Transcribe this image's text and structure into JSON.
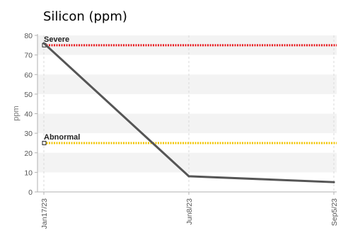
{
  "chart_data": {
    "type": "line",
    "title": "Silicon (ppm)",
    "xlabel": "",
    "ylabel": "ppm",
    "x": [
      "Jan17/23",
      "Jun8/23",
      "Sep5/23"
    ],
    "ylim": [
      0,
      80
    ],
    "yticks": [
      0,
      10,
      20,
      30,
      40,
      50,
      60,
      70,
      80
    ],
    "grid": true,
    "series": [
      {
        "values": [
          76,
          8,
          5
        ]
      }
    ],
    "reference_lines": [
      {
        "label": "Severe",
        "value": 75
      },
      {
        "label": "Abnormal",
        "value": 25
      }
    ],
    "colors": {
      "series": "#555555",
      "severe": "#e8181d",
      "abnormal": "#f2c400",
      "band": "#f3f3f3",
      "grid": "#d9d9d9",
      "axis": "#b0b0b0"
    }
  }
}
